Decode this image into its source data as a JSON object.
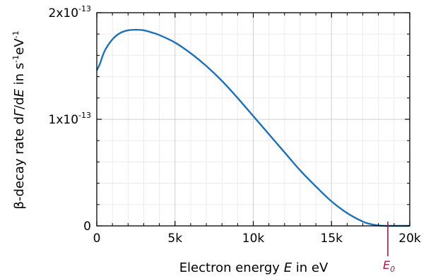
{
  "chart_data": {
    "type": "line",
    "xlabel": {
      "pre": "Electron energy ",
      "var": "E",
      "post": " in eV"
    },
    "ylabel": {
      "pre": "β-decay rate d",
      "var1": "Γ",
      "mid": "/d",
      "var2": "E",
      "post1": " in s",
      "sup1": "-1",
      "post2": "eV",
      "sup2": "-1"
    },
    "xlim": [
      0,
      20000
    ],
    "ylim": [
      0,
      2e-13
    ],
    "x_ticks": [
      {
        "value": 0,
        "label": "0"
      },
      {
        "value": 5000,
        "label": "5k"
      },
      {
        "value": 10000,
        "label": "10k"
      },
      {
        "value": 15000,
        "label": "15k"
      },
      {
        "value": 20000,
        "label": "20k"
      }
    ],
    "y_ticks": [
      {
        "value": 0,
        "label": "0",
        "base": "0",
        "exp": ""
      },
      {
        "value": 1e-13,
        "label": "1x10-13",
        "base": "1x10",
        "exp": "-13"
      },
      {
        "value": 2e-13,
        "label": "2x10-13",
        "base": "2x10",
        "exp": "-13"
      }
    ],
    "grid": true,
    "series": [
      {
        "color": "#1f6fb4",
        "x": [
          0,
          200,
          500,
          1000,
          1500,
          2000,
          2500,
          3000,
          3500,
          4000,
          5000,
          6000,
          7000,
          8000,
          9000,
          10000,
          11000,
          12000,
          13000,
          14000,
          15000,
          16000,
          17000,
          17500,
          18000,
          18300,
          18600,
          20000
        ],
        "y": [
          1.46e-13,
          1.52e-13,
          1.64e-13,
          1.75e-13,
          1.81e-13,
          1.835e-13,
          1.84e-13,
          1.835e-13,
          1.815e-13,
          1.79e-13,
          1.72e-13,
          1.62e-13,
          1.5e-13,
          1.36e-13,
          1.2e-13,
          1.03e-13,
          8.6e-14,
          6.9e-14,
          5.2e-14,
          3.7e-14,
          2.3e-14,
          1.2e-14,
          4e-15,
          1.7e-15,
          4e-16,
          1e-16,
          0,
          0
        ]
      }
    ],
    "annotations": [
      {
        "label_base": "E",
        "label_sub": "0",
        "x": 18600,
        "color": "#9b1b45"
      }
    ]
  }
}
